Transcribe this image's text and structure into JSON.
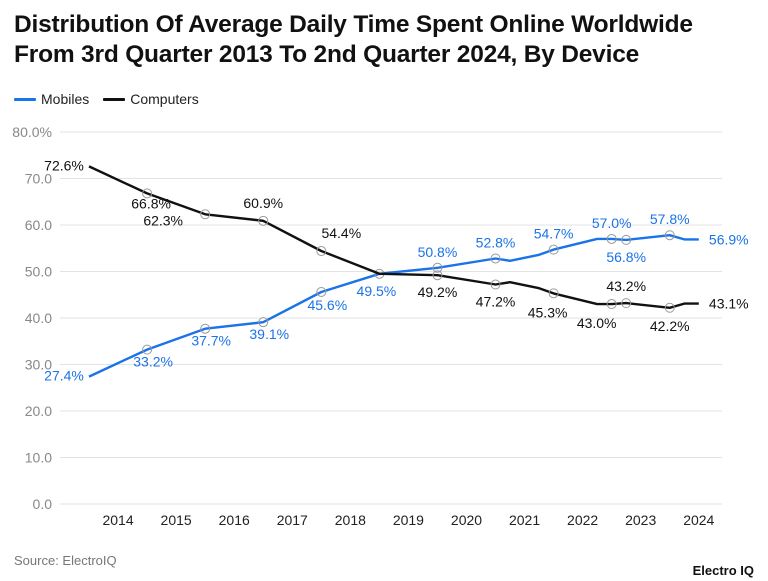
{
  "title_line1": "Distribution Of Average Daily Time Spent Online Worldwide",
  "title_line2": "From 3rd Quarter 2013 To 2nd Quarter 2024, By Device",
  "legend": [
    {
      "label": "Mobiles",
      "color": "#1a73e8"
    },
    {
      "label": "Computers",
      "color": "#111111"
    }
  ],
  "source": "Source: ElectroIQ",
  "brand": "Electro IQ",
  "chart_data": {
    "type": "line",
    "title": "Distribution Of Average Daily Time Spent Online Worldwide From 3rd Quarter 2013 To 2nd Quarter 2024, By Device",
    "xlabel": "",
    "ylabel": "",
    "ylim": [
      0,
      80
    ],
    "yticks": [
      "0.0",
      "10.0",
      "20.0",
      "30.0",
      "40.0",
      "50.0",
      "60.0",
      "70.0",
      "80.0%"
    ],
    "xticks": [
      "2014",
      "2015",
      "2016",
      "2017",
      "2018",
      "2019",
      "2020",
      "2021",
      "2022",
      "2023",
      "2024"
    ],
    "grid": true,
    "legend_position": "top-left",
    "series": [
      {
        "name": "Mobiles",
        "color": "#1a73e8",
        "points": [
          {
            "x": 2013.5,
            "y": 27.4,
            "label": "27.4%",
            "marker": false
          },
          {
            "x": 2014.5,
            "y": 33.2,
            "label": "33.2%",
            "marker": true
          },
          {
            "x": 2015.5,
            "y": 37.7,
            "label": "37.7%",
            "marker": true
          },
          {
            "x": 2016.5,
            "y": 39.1,
            "label": "39.1%",
            "marker": true
          },
          {
            "x": 2017.5,
            "y": 45.6,
            "label": "45.6%",
            "marker": true
          },
          {
            "x": 2018.5,
            "y": 49.5,
            "label": "49.5%",
            "marker": true
          },
          {
            "x": 2019.5,
            "y": 50.8,
            "label": "50.8%",
            "marker": true
          },
          {
            "x": 2020.5,
            "y": 52.8,
            "label": "52.8%",
            "marker": true
          },
          {
            "x": 2020.75,
            "y": 52.3,
            "label": "",
            "marker": false
          },
          {
            "x": 2021.25,
            "y": 53.6,
            "label": "",
            "marker": false
          },
          {
            "x": 2021.5,
            "y": 54.7,
            "label": "54.7%",
            "marker": true
          },
          {
            "x": 2022.25,
            "y": 57.0,
            "label": "",
            "marker": false
          },
          {
            "x": 2022.5,
            "y": 57.0,
            "label": "57.0%",
            "marker": true
          },
          {
            "x": 2022.75,
            "y": 56.8,
            "label": "56.8%",
            "marker": true
          },
          {
            "x": 2023.5,
            "y": 57.8,
            "label": "57.8%",
            "marker": true
          },
          {
            "x": 2023.75,
            "y": 56.9,
            "label": "",
            "marker": false
          },
          {
            "x": 2024.0,
            "y": 56.9,
            "label": "56.9%",
            "marker": false
          }
        ]
      },
      {
        "name": "Computers",
        "color": "#111111",
        "points": [
          {
            "x": 2013.5,
            "y": 72.6,
            "label": "72.6%",
            "marker": false
          },
          {
            "x": 2014.5,
            "y": 66.8,
            "label": "66.8%",
            "marker": true
          },
          {
            "x": 2015.5,
            "y": 62.3,
            "label": "62.3%",
            "marker": true
          },
          {
            "x": 2016.5,
            "y": 60.9,
            "label": "60.9%",
            "marker": true
          },
          {
            "x": 2017.5,
            "y": 54.4,
            "label": "54.4%",
            "marker": true
          },
          {
            "x": 2018.5,
            "y": 49.5,
            "label": "",
            "marker": false
          },
          {
            "x": 2019.5,
            "y": 49.2,
            "label": "49.2%",
            "marker": true
          },
          {
            "x": 2020.5,
            "y": 47.2,
            "label": "47.2%",
            "marker": true
          },
          {
            "x": 2020.75,
            "y": 47.7,
            "label": "",
            "marker": false
          },
          {
            "x": 2021.25,
            "y": 46.4,
            "label": "",
            "marker": false
          },
          {
            "x": 2021.5,
            "y": 45.3,
            "label": "45.3%",
            "marker": true
          },
          {
            "x": 2022.25,
            "y": 43.0,
            "label": "",
            "marker": false
          },
          {
            "x": 2022.5,
            "y": 43.0,
            "label": "43.0%",
            "marker": true
          },
          {
            "x": 2022.75,
            "y": 43.2,
            "label": "43.2%",
            "marker": true
          },
          {
            "x": 2023.5,
            "y": 42.2,
            "label": "42.2%",
            "marker": true
          },
          {
            "x": 2023.75,
            "y": 43.1,
            "label": "",
            "marker": false
          },
          {
            "x": 2024.0,
            "y": 43.1,
            "label": "43.1%",
            "marker": false
          }
        ]
      }
    ]
  }
}
